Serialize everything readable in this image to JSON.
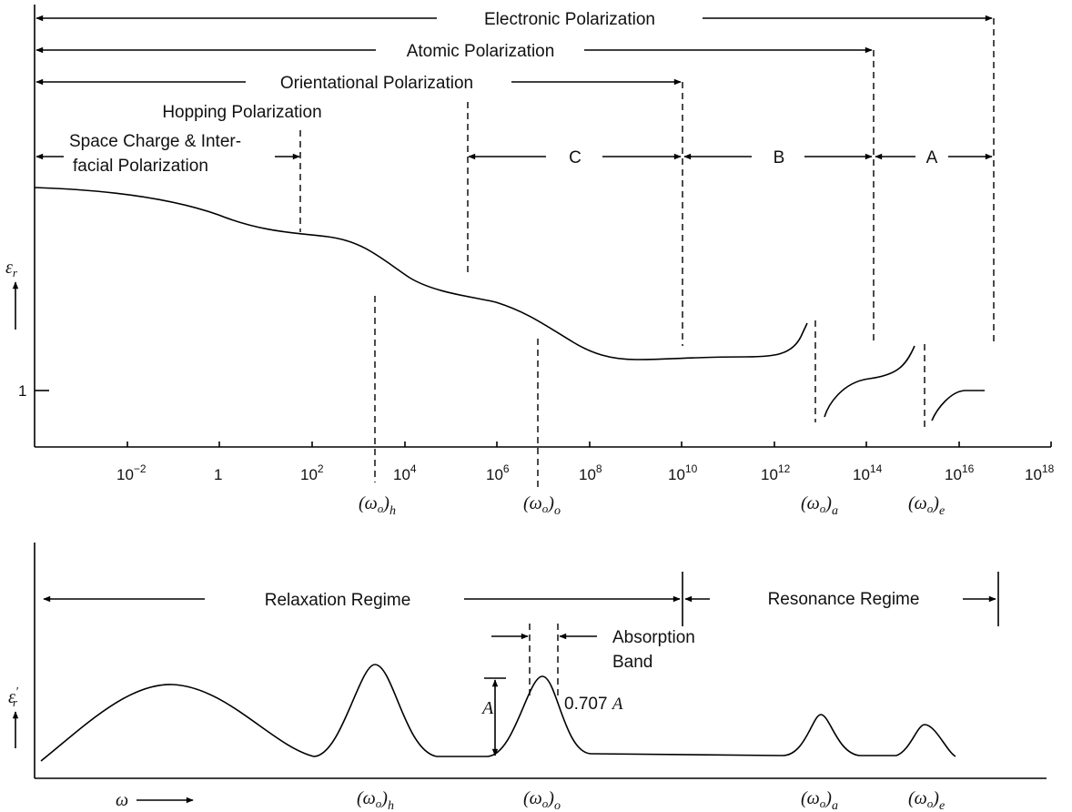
{
  "top_panel": {
    "ranges": {
      "electronic": "Electronic Polarization",
      "atomic": "Atomic Polarization",
      "orientational": "Orientational Polarization",
      "hopping": "Hopping Polarization",
      "space_charge_line1": "Space Charge & Inter-",
      "space_charge_line2": "facial Polarization",
      "region_c": "C",
      "region_b": "B",
      "region_a": "A"
    },
    "y_axis": {
      "symbol": "ε",
      "subscript": "r",
      "tick_one": "1"
    },
    "x_ticks": [
      {
        "base": "10",
        "exp": "−2"
      },
      {
        "base": "1",
        "exp": ""
      },
      {
        "base": "10",
        "exp": "2"
      },
      {
        "base": "10",
        "exp": "4"
      },
      {
        "base": "10",
        "exp": "6"
      },
      {
        "base": "10",
        "exp": "8"
      },
      {
        "base": "10",
        "exp": "10"
      },
      {
        "base": "10",
        "exp": "12"
      },
      {
        "base": "10",
        "exp": "14"
      },
      {
        "base": "10",
        "exp": "16"
      },
      {
        "base": "10",
        "exp": "18"
      }
    ],
    "freq_labels": {
      "h_main": "(ω",
      "h_o": "o",
      "h_sub": "h",
      "o_main": "(ω",
      "o_o": "o",
      "o_sub": "o",
      "a_main": "(ω",
      "a_o": "o",
      "a_sub": "a",
      "e_main": "(ω",
      "e_o": "o",
      "e_sub": "e"
    }
  },
  "bottom_panel": {
    "relaxation": "Relaxation Regime",
    "resonance": "Resonance Regime",
    "absorption_line1": "Absorption",
    "absorption_line2": "Band",
    "amplitude": "A",
    "half_power_num": "0.707",
    "half_power_sym": "A",
    "y_axis": {
      "symbol": "ε",
      "subscript": "r",
      "prime": "′"
    },
    "omega": "ω",
    "freq_labels": {
      "h_main": "(ω",
      "h_o": "o",
      "h_sub": "h",
      "o_main": "(ω",
      "o_o": "o",
      "o_sub": "o",
      "a_main": "(ω",
      "a_o": "o",
      "a_sub": "a",
      "e_main": "(ω",
      "e_o": "o",
      "e_sub": "e"
    }
  },
  "colors": {
    "ink": "#000000",
    "background": "#ffffff"
  }
}
